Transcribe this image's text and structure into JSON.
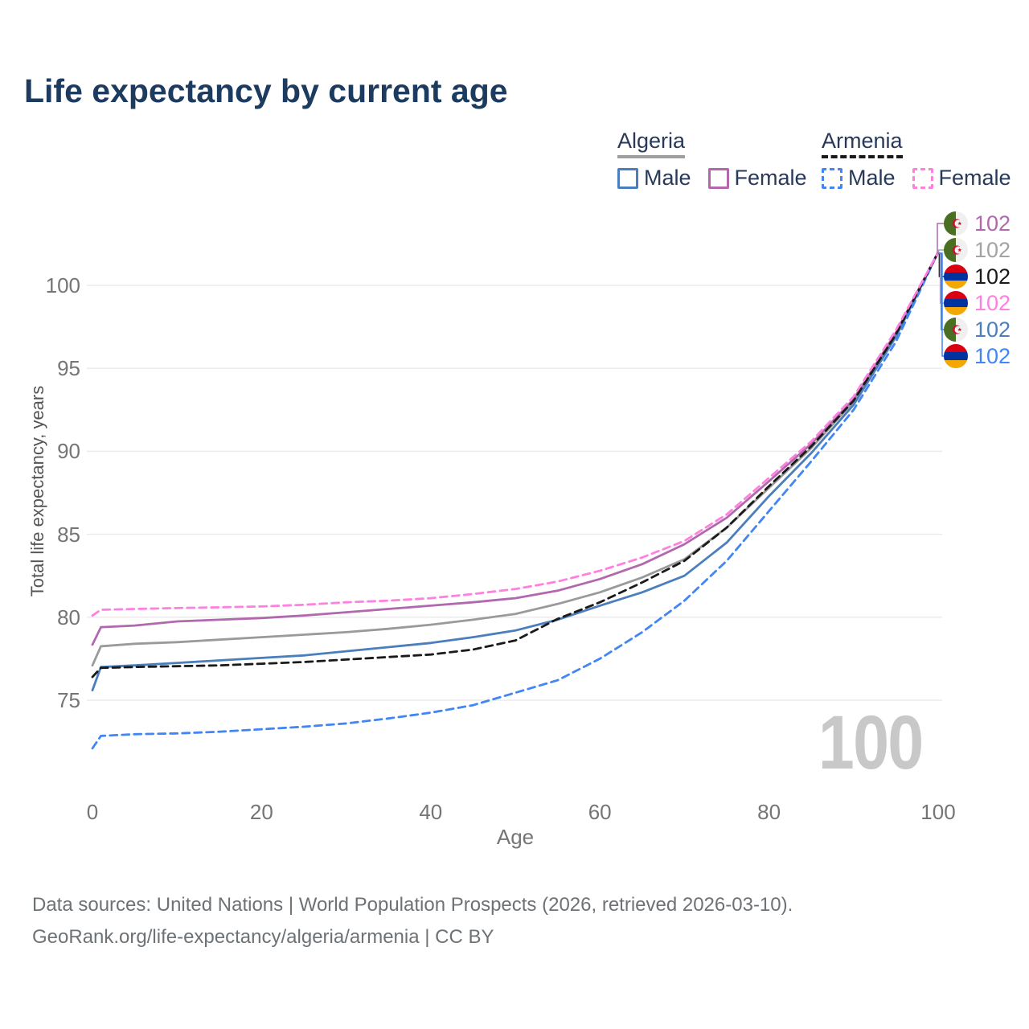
{
  "title": "Life expectancy by current age",
  "watermark": "100",
  "legend": {
    "groups": [
      {
        "id": "algeria",
        "label": "Algeria",
        "underline": "solid",
        "underline_color": "#9e9e9e",
        "items": [
          {
            "label": "Male",
            "color": "#4a7ebc",
            "dash": false
          },
          {
            "label": "Female",
            "color": "#b168ad",
            "dash": false
          }
        ]
      },
      {
        "id": "armenia",
        "label": "Armenia",
        "underline": "dashed",
        "underline_color": "#1a1a1a",
        "items": [
          {
            "label": "Male",
            "color": "#4285f4",
            "dash": true
          },
          {
            "label": "Female",
            "color": "#ff80df",
            "dash": true
          }
        ]
      }
    ]
  },
  "chart_data": {
    "type": "line",
    "title": "Life expectancy by current age",
    "xlabel": "Age",
    "ylabel": "Total life expectancy, years",
    "x_ticks": [
      0,
      20,
      40,
      60,
      80,
      100
    ],
    "y_ticks": [
      75,
      80,
      85,
      90,
      95,
      100
    ],
    "xlim": [
      0,
      100
    ],
    "ylim": [
      71.5,
      102.5
    ],
    "grid": "horizontal",
    "legend_position": "top-right",
    "ages": [
      0,
      1,
      5,
      10,
      15,
      20,
      25,
      30,
      35,
      40,
      45,
      50,
      55,
      60,
      65,
      70,
      75,
      80,
      85,
      90,
      95,
      100
    ],
    "series": [
      {
        "name": "Algeria (both sexes)",
        "country": "algeria",
        "sex": "both",
        "color": "#9a9a9a",
        "dash": false,
        "values": [
          77.1,
          78.25,
          78.4,
          78.5,
          78.65,
          78.8,
          78.95,
          79.1,
          79.3,
          79.55,
          79.85,
          80.2,
          80.8,
          81.5,
          82.4,
          83.5,
          85.4,
          87.8,
          90.2,
          93.0,
          97.0,
          102
        ]
      },
      {
        "name": "Algeria Female",
        "country": "algeria",
        "sex": "female",
        "color": "#b168ad",
        "dash": false,
        "values": [
          78.35,
          79.4,
          79.5,
          79.75,
          79.85,
          79.95,
          80.1,
          80.3,
          80.5,
          80.7,
          80.9,
          81.15,
          81.6,
          82.3,
          83.2,
          84.4,
          86.0,
          88.2,
          90.45,
          93.15,
          97.15,
          102
        ]
      },
      {
        "name": "Algeria Male",
        "country": "algeria",
        "sex": "male",
        "color": "#4a7ebc",
        "dash": false,
        "values": [
          75.6,
          77.0,
          77.1,
          77.25,
          77.4,
          77.55,
          77.7,
          77.95,
          78.2,
          78.45,
          78.8,
          79.2,
          79.85,
          80.7,
          81.5,
          82.5,
          84.5,
          87.3,
          89.9,
          92.8,
          96.9,
          102
        ]
      },
      {
        "name": "Armenia Male",
        "country": "armenia",
        "sex": "male",
        "color": "#4285f4",
        "dash": true,
        "values": [
          72.1,
          72.85,
          72.95,
          73.0,
          73.1,
          73.25,
          73.4,
          73.6,
          73.9,
          74.25,
          74.7,
          75.45,
          76.2,
          77.5,
          79.1,
          81.0,
          83.4,
          86.4,
          89.4,
          92.5,
          96.6,
          102
        ]
      },
      {
        "name": "Armenia (both sexes)",
        "country": "armenia",
        "sex": "both",
        "color": "#1a1a1a",
        "dash": true,
        "values": [
          76.4,
          76.95,
          77.0,
          77.05,
          77.1,
          77.2,
          77.3,
          77.45,
          77.6,
          77.75,
          78.05,
          78.6,
          79.9,
          80.9,
          82.1,
          83.4,
          85.4,
          87.9,
          90.3,
          93.05,
          97.05,
          102
        ]
      },
      {
        "name": "Armenia Female",
        "country": "armenia",
        "sex": "female",
        "color": "#ff80df",
        "dash": true,
        "values": [
          80.1,
          80.45,
          80.5,
          80.55,
          80.6,
          80.65,
          80.75,
          80.9,
          81.0,
          81.15,
          81.4,
          81.7,
          82.15,
          82.8,
          83.6,
          84.6,
          86.2,
          88.4,
          90.6,
          93.3,
          97.3,
          102
        ]
      }
    ],
    "end_labels": [
      {
        "series": "Algeria Female",
        "flag": "algeria",
        "value": "102",
        "color": "#b168ad"
      },
      {
        "series": "Algeria (both sexes)",
        "flag": "algeria",
        "value": "102",
        "color": "#a3a3a3"
      },
      {
        "series": "Armenia (both sexes)",
        "flag": "armenia",
        "value": "102",
        "color": "#1a1a1a"
      },
      {
        "series": "Armenia Female",
        "flag": "armenia",
        "value": "102",
        "color": "#ff80df"
      },
      {
        "series": "Algeria Male",
        "flag": "algeria",
        "value": "102",
        "color": "#4a7ebc"
      },
      {
        "series": "Armenia Male",
        "flag": "armenia",
        "value": "102",
        "color": "#4285f4"
      }
    ],
    "flag_colors": {
      "algeria": {
        "green": "#4a6e22",
        "white": "#f0f0f0",
        "red": "#d21034"
      },
      "armenia": {
        "red": "#d90012",
        "blue": "#0033a0",
        "orange": "#f2a800"
      }
    },
    "grid_color": "#ebebeb"
  },
  "footer": {
    "line1": "Data sources: United Nations | World Population Prospects (2026, retrieved 2026-03-10).",
    "line2": "GeoRank.org/life-expectancy/algeria/armenia | CC BY"
  }
}
